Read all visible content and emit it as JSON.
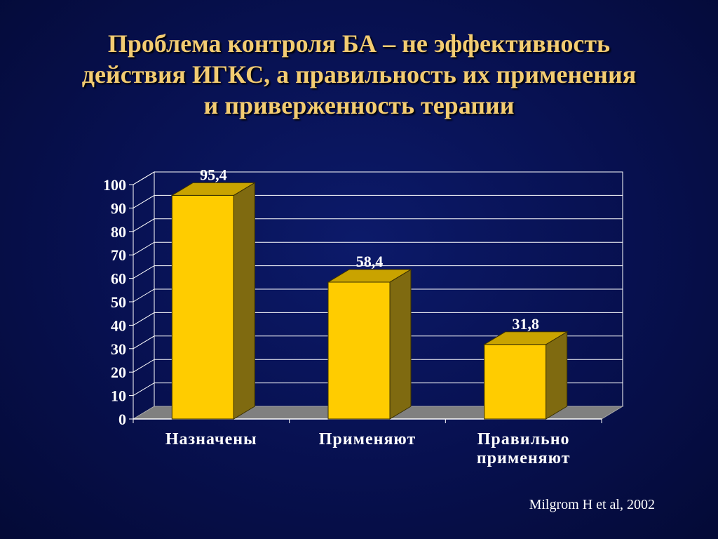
{
  "slide": {
    "title_lines": [
      "Проблема контроля БА – не эффективность",
      "действия ИГКС, а правильность их применения",
      "и приверженность терапии"
    ],
    "source": "Milgrom H et al,  2002"
  },
  "colors": {
    "background": "#07104f",
    "title": "#f3cc72",
    "bar_front": "#ffcc00",
    "bar_side": "#7f6a10",
    "bar_top": "#c9a300",
    "grid": "#ffffff",
    "floor": "#808080",
    "text": "#ffffff"
  },
  "chart_data": {
    "type": "bar",
    "categories": [
      "Назначены",
      "Применяют",
      "Правильно применяют"
    ],
    "category_label_lines": [
      [
        "Назначены"
      ],
      [
        "Применяют"
      ],
      [
        "Правильно",
        "применяют"
      ]
    ],
    "values": [
      95.4,
      58.4,
      31.8
    ],
    "data_labels": [
      "95,4",
      "58,4",
      "31,8"
    ],
    "yticks": [
      "0",
      "10",
      "20",
      "30",
      "40",
      "50",
      "60",
      "70",
      "80",
      "90",
      "100"
    ],
    "ylim": [
      0,
      100
    ],
    "title": "",
    "xlabel": "",
    "ylabel": "",
    "grid": true,
    "three_d": true,
    "legend": "none"
  }
}
